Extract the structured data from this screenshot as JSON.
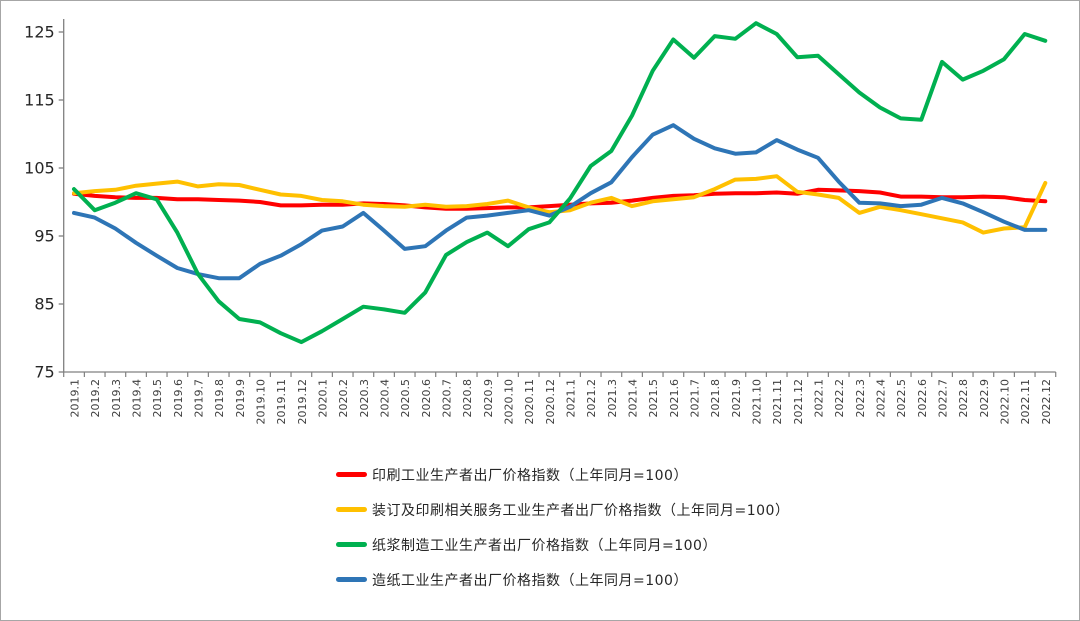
{
  "page": {
    "background": "#ffffff",
    "border_color": "#a6a6a6"
  },
  "chart_data": {
    "type": "line",
    "title": "",
    "xlabel": "",
    "ylabel": "",
    "ylim": [
      75,
      125
    ],
    "y_ticks": [
      75,
      85,
      95,
      105,
      115,
      125
    ],
    "grid": false,
    "legend_position": "bottom",
    "axis_color": "#808080",
    "y_tick_label_color": "#262626",
    "x_tick_label_color": "#404040",
    "x_labels": [
      "2019.1",
      "2019.2",
      "2019.3",
      "2019.4",
      "2019.5",
      "2019.6",
      "2019.7",
      "2019.8",
      "2019.9",
      "2019.10",
      "2019.11",
      "2019.12",
      "2020.1",
      "2020.2",
      "2020.3",
      "2020.4",
      "2020.5",
      "2020.6",
      "2020.7",
      "2020.8",
      "2020.9",
      "2020.10",
      "2020.11",
      "2020.12",
      "2021.1",
      "2021.2",
      "2021.3",
      "2021.4",
      "2021.5",
      "2021.6",
      "2021.7",
      "2021.8",
      "2021.9",
      "2021.10",
      "2021.11",
      "2021.12",
      "2022.1",
      "2022.2",
      "2022.3",
      "2022.4",
      "2022.5",
      "2022.6",
      "2022.7",
      "2022.8",
      "2022.9",
      "2022.10",
      "2022.11",
      "2022.12"
    ],
    "series": [
      {
        "name": "印刷工业生产者出厂价格指数（上年同月=100）",
        "color": "#FF0000",
        "values": [
          101.2,
          100.9,
          100.7,
          100.6,
          100.6,
          100.4,
          100.4,
          100.3,
          100.2,
          100.0,
          99.5,
          99.5,
          99.6,
          99.6,
          99.8,
          99.7,
          99.5,
          99.2,
          99.0,
          99.0,
          99.1,
          99.2,
          99.2,
          99.4,
          99.6,
          99.8,
          99.9,
          100.2,
          100.6,
          100.9,
          101.0,
          101.2,
          101.3,
          101.3,
          101.4,
          101.2,
          101.8,
          101.7,
          101.6,
          101.4,
          100.8,
          100.8,
          100.7,
          100.7,
          100.8,
          100.7,
          100.3,
          100.1
        ]
      },
      {
        "name": "装订及印刷相关服务工业生产者出厂价格指数（上年同月=100）",
        "color": "#FFC000",
        "values": [
          101.3,
          101.6,
          101.8,
          102.4,
          102.7,
          103.0,
          102.3,
          102.6,
          102.5,
          101.8,
          101.1,
          100.9,
          100.3,
          100.1,
          99.6,
          99.4,
          99.3,
          99.6,
          99.3,
          99.4,
          99.7,
          100.2,
          99.2,
          98.5,
          98.8,
          99.9,
          100.6,
          99.4,
          100.1,
          100.4,
          100.7,
          101.9,
          103.3,
          103.4,
          103.8,
          101.5,
          101.1,
          100.6,
          98.4,
          99.3,
          98.8,
          98.2,
          97.6,
          97.0,
          95.5,
          96.1,
          96.3,
          102.8
        ]
      },
      {
        "name": "纸浆制造工业生产者出厂价格指数（上年同月=100）",
        "color": "#00B050",
        "values": [
          101.9,
          98.8,
          99.9,
          101.3,
          100.4,
          95.5,
          89.4,
          85.4,
          82.8,
          82.3,
          80.7,
          79.4,
          81.0,
          82.8,
          84.6,
          84.2,
          83.7,
          86.7,
          92.2,
          94.1,
          95.5,
          93.5,
          96.0,
          97.0,
          100.5,
          105.3,
          107.5,
          112.7,
          119.3,
          123.9,
          121.2,
          124.4,
          124.0,
          126.3,
          124.7,
          121.3,
          121.5,
          118.8,
          116.1,
          113.9,
          112.3,
          112.1,
          120.6,
          118.0,
          119.3,
          121.0,
          124.7,
          123.7
        ]
      },
      {
        "name": "造纸工业生产者出厂价格指数（上年同月=100）",
        "color": "#2E75B6",
        "values": [
          98.4,
          97.7,
          96.1,
          94.0,
          92.1,
          90.3,
          89.4,
          88.8,
          88.8,
          90.9,
          92.1,
          93.8,
          95.8,
          96.4,
          98.4,
          95.8,
          93.1,
          93.5,
          95.8,
          97.7,
          98.0,
          98.4,
          98.8,
          98.0,
          99.3,
          101.3,
          102.9,
          106.6,
          109.9,
          111.3,
          109.3,
          107.9,
          107.1,
          107.3,
          109.1,
          107.7,
          106.5,
          103.0,
          99.9,
          99.8,
          99.4,
          99.6,
          100.6,
          99.8,
          98.5,
          97.1,
          95.9,
          95.9
        ]
      }
    ]
  }
}
